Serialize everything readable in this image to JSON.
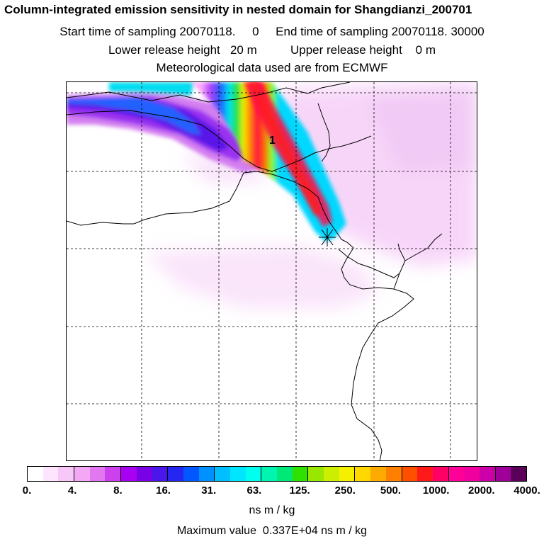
{
  "header": {
    "title": "Column-integrated emission sensitivity in nested domain for Shangdianzi_200701",
    "sampling_line": "Start time of sampling 20070118.     0     End time of sampling 20070118. 30000",
    "release_line": "Lower release height   20 m          Upper release height    0 m",
    "met_line": "Meteorological data used are from ECMWF"
  },
  "map": {
    "release_label": "1"
  },
  "colorbar": {
    "tick_labels": [
      "0.",
      "4.",
      "8.",
      "16.",
      "31.",
      "63.",
      "125.",
      "250.",
      "500.",
      "1000.",
      "2000.",
      "4000."
    ],
    "colors": [
      "#ffffff",
      "#fde6fd",
      "#f7c8f7",
      "#f2a8f4",
      "#e178ef",
      "#cc40ee",
      "#a800f0",
      "#7a00e6",
      "#4b16ea",
      "#2626f2",
      "#0056ff",
      "#0090ff",
      "#00bfff",
      "#00e6ff",
      "#00ffee",
      "#00f5b0",
      "#00e878",
      "#30e000",
      "#99e600",
      "#ccee00",
      "#f5f000",
      "#ffd800",
      "#ffaa00",
      "#ff8000",
      "#ff5000",
      "#ff1a1a",
      "#ff0066",
      "#ff0099",
      "#f0009f",
      "#cc00a8",
      "#a0009a",
      "#5a0058"
    ],
    "unit_label": "ns m / kg",
    "max_label": "Maximum value  0.337E+04 ns m / kg"
  }
}
